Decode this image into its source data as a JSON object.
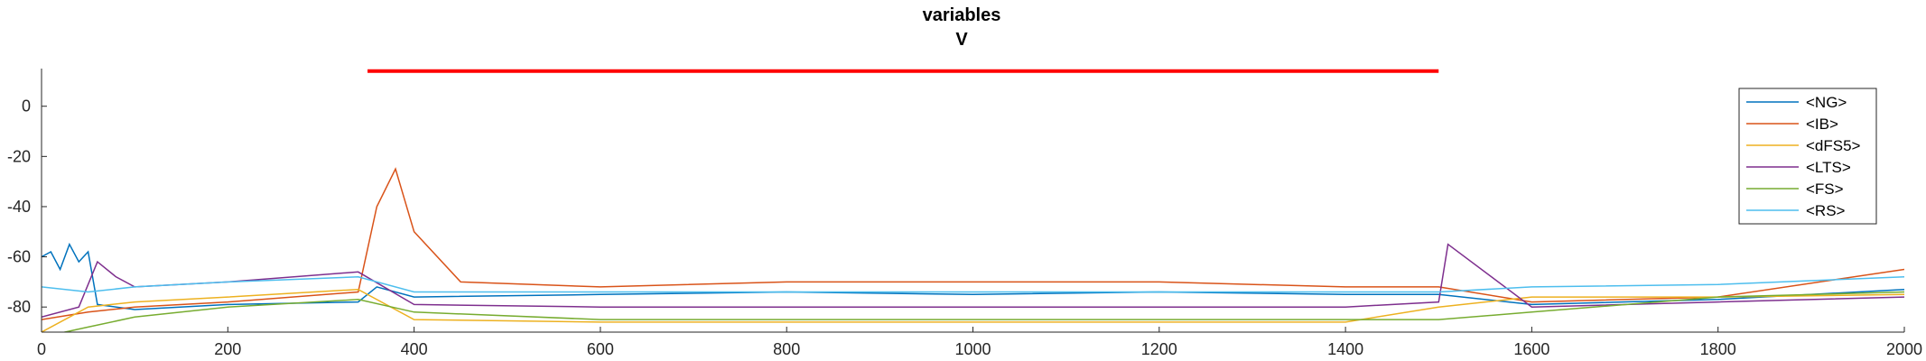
{
  "chart_data": {
    "type": "line",
    "title": "variables",
    "subtitle": "V",
    "xlabel": "",
    "ylabel": "",
    "xlim": [
      0,
      2000
    ],
    "ylim": [
      -90,
      15
    ],
    "xticks": [
      0,
      200,
      400,
      600,
      800,
      1000,
      1200,
      1400,
      1600,
      1800,
      2000
    ],
    "yticks": [
      0,
      -20,
      -40,
      -60,
      -80
    ],
    "grid": false,
    "legend_position": "top-right",
    "stimulus_bar": {
      "x": [
        350,
        1500
      ],
      "y": 14,
      "color": "#ff0000"
    },
    "series": [
      {
        "name": "<NG>",
        "color": "#0072bd",
        "x": [
          0,
          10,
          20,
          30,
          40,
          50,
          60,
          100,
          200,
          340,
          360,
          400,
          600,
          800,
          1000,
          1200,
          1400,
          1500,
          1600,
          1800,
          2000
        ],
        "y": [
          -60,
          -58,
          -65,
          -55,
          -62,
          -58,
          -79,
          -81,
          -79,
          -78,
          -72,
          -76,
          -75,
          -74,
          -75,
          -74,
          -75,
          -75,
          -79,
          -77,
          -73
        ]
      },
      {
        "name": "<IB>",
        "color": "#d95319",
        "x": [
          0,
          50,
          100,
          200,
          340,
          360,
          380,
          400,
          450,
          600,
          800,
          1000,
          1200,
          1400,
          1500,
          1600,
          1800,
          2000
        ],
        "y": [
          -85,
          -82,
          -80,
          -78,
          -74,
          -40,
          -25,
          -50,
          -70,
          -72,
          -70,
          -70,
          -70,
          -72,
          -72,
          -78,
          -76,
          -65
        ]
      },
      {
        "name": "<dFS5>",
        "color": "#edb120",
        "x": [
          0,
          50,
          100,
          200,
          340,
          400,
          600,
          800,
          1000,
          1200,
          1400,
          1500,
          1600,
          1800,
          2000
        ],
        "y": [
          -90,
          -80,
          -78,
          -76,
          -73,
          -85,
          -86,
          -86,
          -86,
          -86,
          -86,
          -80,
          -76,
          -76,
          -75
        ]
      },
      {
        "name": "<LTS>",
        "color": "#7e2f8e",
        "x": [
          0,
          40,
          60,
          80,
          100,
          200,
          340,
          400,
          600,
          800,
          1000,
          1200,
          1400,
          1500,
          1510,
          1600,
          1800,
          2000
        ],
        "y": [
          -84,
          -80,
          -62,
          -68,
          -72,
          -70,
          -66,
          -79,
          -80,
          -80,
          -80,
          -80,
          -80,
          -78,
          -55,
          -80,
          -78,
          -76
        ]
      },
      {
        "name": "<FS>",
        "color": "#77ac30",
        "x": [
          0,
          50,
          100,
          200,
          340,
          400,
          600,
          800,
          1000,
          1200,
          1400,
          1500,
          1600,
          1800,
          2000
        ],
        "y": [
          -92,
          -88,
          -84,
          -80,
          -77,
          -82,
          -85,
          -85,
          -85,
          -85,
          -85,
          -85,
          -82,
          -76,
          -74
        ]
      },
      {
        "name": "<RS>",
        "color": "#4dbeee",
        "x": [
          0,
          50,
          100,
          200,
          340,
          400,
          600,
          800,
          1000,
          1200,
          1400,
          1500,
          1600,
          1800,
          2000
        ],
        "y": [
          -72,
          -74,
          -72,
          -70,
          -68,
          -74,
          -74,
          -74,
          -74,
          -74,
          -74,
          -74,
          -72,
          -71,
          -68
        ]
      }
    ]
  }
}
